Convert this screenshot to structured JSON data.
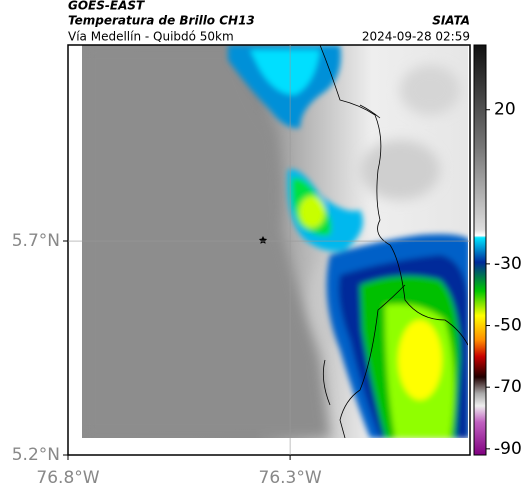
{
  "header": {
    "satellite": "GOES-EAST",
    "title": "Temperatura de Brillo CH13",
    "subtitle": "Vía Medellín - Quibdó 50km",
    "source": "SIATA",
    "timestamp": "2024-09-28 02:59"
  },
  "map": {
    "lonlim": [
      -76.8,
      -75.895
    ],
    "latlim": [
      5.2,
      6.158
    ],
    "lon_ticks": [
      {
        "value": -76.8,
        "label": "76.8°W"
      },
      {
        "value": -76.3,
        "label": "76.3°W"
      }
    ],
    "lat_ticks": [
      {
        "value": 5.7,
        "label": "5.7°N"
      },
      {
        "value": 5.2,
        "label": "5.2°N"
      }
    ]
  },
  "colorbar": {
    "range": [
      41,
      -92
    ],
    "ticks": [
      20,
      -30,
      -50,
      -70,
      -90
    ]
  }
}
